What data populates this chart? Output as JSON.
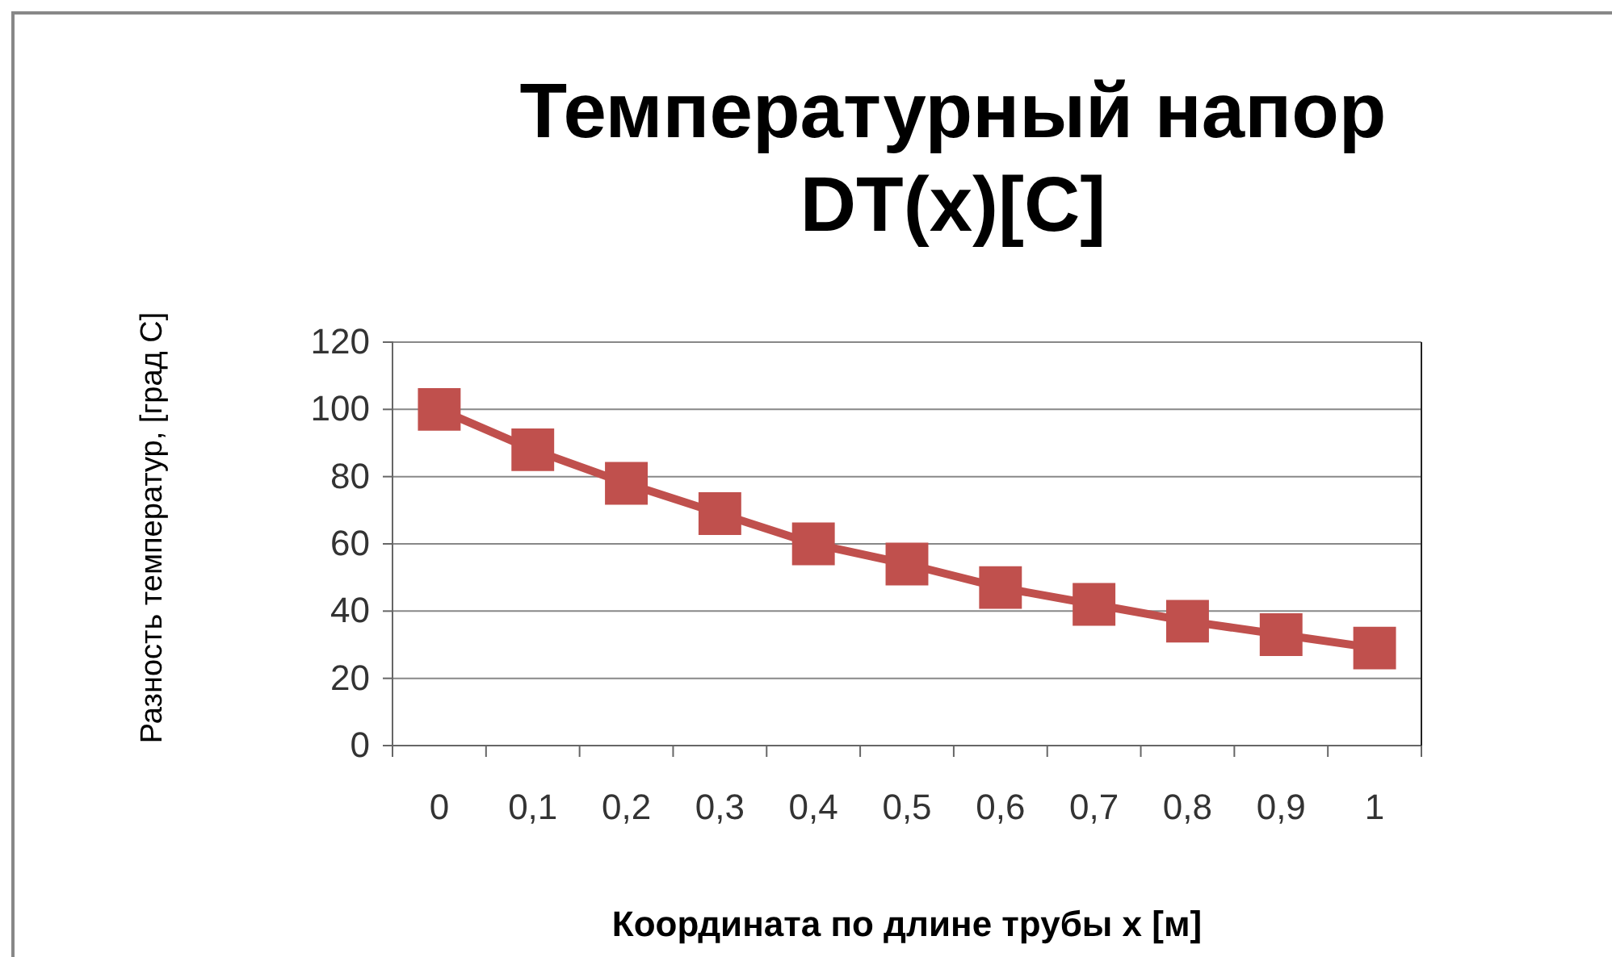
{
  "chart_data": {
    "type": "line",
    "title": "Температурный напор DT(x)[C]",
    "xlabel": "Координата по длине трубы x [м]",
    "ylabel": "Разность температур, [град С]",
    "categories": [
      "0",
      "0,1",
      "0,2",
      "0,3",
      "0,4",
      "0,5",
      "0,6",
      "0,7",
      "0,8",
      "0,9",
      "1"
    ],
    "series": [
      {
        "color": "#c0504d",
        "values": [
          100,
          88,
          78,
          69,
          60,
          54,
          47,
          42,
          37,
          33,
          29
        ]
      }
    ],
    "ylim": [
      0,
      120
    ],
    "yticks": [
      0,
      20,
      40,
      60,
      80,
      100,
      120
    ],
    "grid": "y",
    "marker": "square"
  }
}
